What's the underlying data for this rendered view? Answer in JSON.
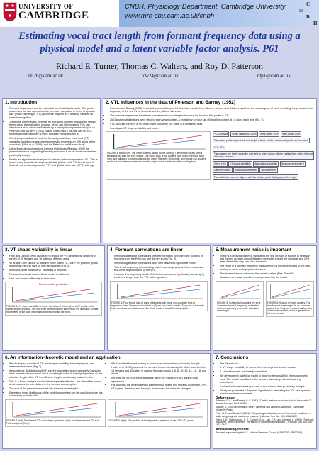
{
  "header": {
    "university": "UNIVERSITY OF",
    "cambridge": "CAMBRIDGE",
    "department": "CNBH, Physiology Department, Cambridge University",
    "url": "www.mrc-cbu.cam.ac.uk/cnbh",
    "logo_letters": [
      "C",
      "N",
      "B",
      "H"
    ]
  },
  "title": "Estimating vocal tract length from formant frequency data using a physical model and a latent variable factor analysis. P61",
  "authors": "Richard E. Turner, Thomas C. Walters, and Roy D. Patterson",
  "emails": [
    "ret26@cam.ac.uk",
    "tcw24@cam.ac.uk",
    "rdp1@cam.ac.uk"
  ],
  "sections": [
    {
      "heading": "1. Introduction",
      "paragraphs": [
        "Formant frequencies can be estimated from individual vowels. This poster shows how we can summarise the formant information in terms of speaker size (vocal tract length, VTL) which we propose as a tracking variable for speech recognition.",
        "Traditional deterministic methods for extracting formant frequencies neglect the errors of the estimation process, which can be important. This can introduce a bias, which we illustrate by a principal-components analysis of Peterson and Barney's (1952) classic vowel data. This bias has led to a belief that vowel category is more complex than it actually is.",
        "We develop a statistical model of formant production, vocal tract (VT) variability, and the measurement process by reviewing an MRI study of the vocal tract (Fitch et al, 1999), and the Peterson and Barney study.",
        "Using Bayesian and machine learning techniques (Mackay, 2003) we present evidence suggesting formant production is much more uniform than previously thought.",
        "Finally, an algorithm is developed to infer an unknown speaker's VTL. This is tested using acoustic-developmental data (Huber et al, 1999) and used to illustrate the co-development of VTL and glottal pulse rate (GPR) with age."
      ]
    },
    {
      "heading": "2. VTL influences in the data of Peterson and Barney (1952)",
      "paragraphs": [
        "Peterson and Barney (1952) recorded two repetitions of 10 American vowels from 76 men, women and children, and from the spectrogram of each recording, they extracted the frequency of the first three formants and the pitch of the vowel.",
        "The formant frequencies have been converted into wavelengths because the focus of this poster is VTL.",
        "76 Gaussian distributions were fitted to each vowel cluster. A probability contour (an ellipsoid) is plotted at 1σ along each axis (Fig. 1).",
        "VTL accounts for 90% of the intra-vowel variability, but there is a consistent bias.",
        "Investigate VT shape variability and noise."
      ],
      "figures": [
        {
          "caption": "FIGURE 1: Bottom left. The vowel clusters, which do not overlap. The formant values form a separable set from the front vowels. The major axes of the clusters have been extended; solid lines, and fall away to point just above the origin. The right: child, male, and female sub-clusters are found at increasing distances from the origin, but on identical uniform-scaling lines."
        }
      ],
      "diagram": [
        "PCA analysis",
        "Vowel variability: 100%",
        "Intra-vowel: 20%",
        "Inter-vowel: 80%",
        "The cluster position (centroid) and length relative to other clusters depends on the vowel.",
        "VTL: 90%",
        "The clusters are highly eccentric and tend to orient along uniform scaling lines where formant ratios are constant.",
        "Other: 10%",
        "VT shape variability",
        "Articulation variability",
        "Measurement noise ?",
        "Different vowels",
        "Individual differences",
        "various effects",
        "The subclusters are not aligned with the cluster; point slightly above the origin."
      ]
    },
    {
      "heading": "3. VT shape variability is linear",
      "paragraphs": [
        "Fitch and Giedd (1999) used MRI to record the VT, dimensions, height and weight of 50 females and 76 males of different ages.",
        "VT shape – the ratio of VT section to the total VTL – vary: the pharynx grows faster than the oral tract for men and women (Fig. 3).",
        "A second-order model of VT variability is required.",
        "Resonant methods show a linear model is sufficient.",
        "Men and women differ only in their size."
      ],
      "figures": [
        {
          "title": "Linear model prediction",
          "caption": "FIGURE 3: VT shape variability is linear: the ratios of the length of a VT section to the overall length (crosses). The first three dependence on the vertical; the line show a linear model fitted to the data, which is sufficient to explain the trend."
        }
      ]
    },
    {
      "heading": "4. Formant correlations are linear",
      "paragraphs": [
        "We investigated the correlations between formants by plotting the 30 pairs of formants from the Peterson and Barney study (Fig. 4).",
        "We investigated the correlations were best described by a linear model.",
        "This is not surprising for modelling vowel recordings since a linear model is a first-order approximation of the VTL.",
        "However it is surprising for the Helmholtz resonances (typified by wavelength) which are longer than the VTL of the speaker."
      ],
      "figures": [
        {
          "caption": "FIGURE 4: Four typical data of pairs of formants with linear and quadratic best-fit regression lines. The errors calculated in (β) are not used in the fits. Two pairs of formants have non-linear contributions yet the linear model is a sufficient description."
        }
      ]
    },
    {
      "heading": "5. Measurement noise is important",
      "paragraphs": [
        "There is a known problem in estimating the first formant of sounds in Peterson and Barney used an unsophisticated method to extract the formants and 20% were defined by only one pitch harmonic.",
        "The noise in a formant frequency measurement is therefore related to the pitch, leading to noise on high-pitched vowels.",
        "This biases formant ratios and the vowel clusters (Figs. 5 and 6).",
        "Measurement noise should be incorporated into the model."
      ],
      "figures": [
        {
          "caption": "FIGURE 5: Schematic illustrating the error in measurement of frequency, estimated and corresponding error in the calculated wavelength."
        },
        {
          "caption": "FIGURE 6: Scaling of vowel clusters. The true formant wavelengths lie on a uniform scaling line. They are smeared out by noise in the measurement, which is greatest for the first formant."
        }
      ]
    },
    {
      "heading": "6. An information-theoretic model and an application",
      "paragraphs": [
        "We developed a model of VTL and shape variability, formant physics, and measurement noise (Fig. 7).",
        "Assumptions: distributions of VTLs in the population is approximately Gaussian; each formant of each vowel has a wavelength which is linearly dependent on the effective length of the VT; the effective lengths are linearly related to size.",
        "This is a factor analysis model with a single latent factor – the size of the person – which causes the correlations in the formant wavelengths.",
        "The size of the person is encoded into formant wavelengths.",
        "Estimating these likelihoods of the model parameters can be used to decode this uncertainty from the data.",
        "We found that formant scaling is much more uniform than previously thought.",
        "Huber et al (1999) recorded the formant frequencies and pitch of the vowel in from 16 females and 10 males in each of the age groups 4, 6, 8, 10, 12, 14, 16, 18, and adults.",
        "We infer the VTLs of these speakers using the results to Fitch, finding close agreement.",
        "Fig. 8 shows the developmental trajectories of males and females across the GPR-VTL plane. Peterson and Barney's data shows the dramatic changes."
      ],
      "figures": [
        {
          "caption": "FIGURE 7 (left): The inferred VTLs of Huber's speakers (dots) and the measured VTLs of Fitch's subjects (lines)."
        },
        {
          "caption": "FIGURE 8 (right): The position of development of speakers in the GPR-VTL plane."
        }
      ]
    },
    {
      "heading": "7. Conclusions",
      "paragraphs": [
        "The data shows:",
        "1. VT shape variability is non-uniform but depends linearly on size",
        "2. Vowel formants are linearly correlated",
        "We developed a statistical model to allow for the possibility of measurement error. The model was fitted to the formant data using machine learning techniques.",
        "It indicates formant scaling is much more uniform than previously thought.",
        "Finally we presented a Bayesian algorithm for estimating the VTL of a speaker from formant measurements."
      ],
      "references_heading": "References",
      "references": [
        "Peterson, G. E., and Barney, H. L. (1952). \"Control methods used in a study of the vowels,\" J. Acoust. Soc. Am. 24, 175-184.",
        "Mackay, D. (2003) Information Theory, Inference and Learning Algorithms. Cambridge University Press.",
        "Fitch, W. T., and Giedd, J. (1999). \"Morphology and development of the human vocal tract: a study using magnetic resonance imaging,\" J. Acoust. Soc. Am. 106, 1511-1522.",
        "Huber, J. E., Stathopoulos, E. T., Curione, G. M., Ash, T. A., and Johnson, K. (1999). \"Formants of children, women and men: The effects of vocal intensity variation,\" J. Acoust. Soc. Am. 106, 1532-1542."
      ],
      "acknowledgements_heading": "Acknowledgements",
      "acknowledgements": "Research supported by the U.K. Medical Research Council (G9901257, G9900369)"
    }
  ]
}
